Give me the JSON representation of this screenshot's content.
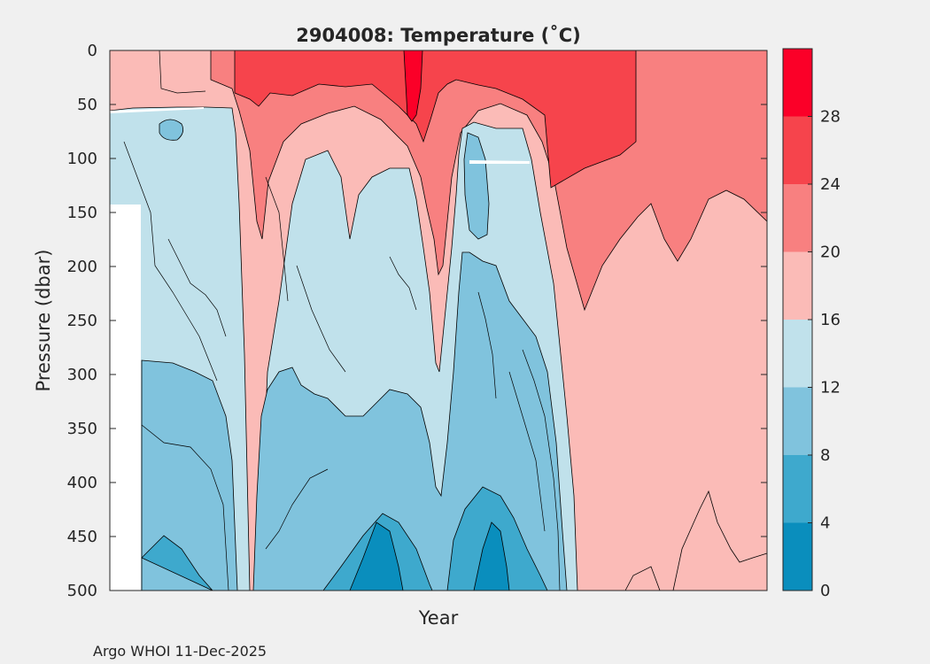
{
  "chart_data": {
    "type": "heatmap",
    "subtype": "filled-contour",
    "title": "2904008:  Temperature (˚C)",
    "xlabel": "Year",
    "ylabel": "Pressure (dbar)",
    "ylim": [
      0,
      500
    ],
    "y_reversed": true,
    "yticks": [
      "0",
      "50",
      "100",
      "150",
      "200",
      "250",
      "300",
      "350",
      "400",
      "450",
      "500"
    ],
    "xticks": [],
    "colorbar": {
      "range": [
        0,
        32
      ],
      "tick_values": [
        0,
        4,
        8,
        12,
        16,
        20,
        24,
        28
      ],
      "tick_labels": [
        "0",
        "4",
        "8",
        "12",
        "16",
        "20",
        "24",
        "28"
      ],
      "levels": [
        {
          "from": 0,
          "to": 4,
          "color": "#0a8ebd"
        },
        {
          "from": 4,
          "to": 8,
          "color": "#3ea9cd"
        },
        {
          "from": 8,
          "to": 12,
          "color": "#80c3dd"
        },
        {
          "from": 12,
          "to": 16,
          "color": "#c0e1eb"
        },
        {
          "from": 16,
          "to": 20,
          "color": "#fbbbb7"
        },
        {
          "from": 20,
          "to": 24,
          "color": "#f88080"
        },
        {
          "from": 24,
          "to": 28,
          "color": "#f6444c"
        },
        {
          "from": 28,
          "to": 32,
          "color": "#fb0028"
        }
      ]
    },
    "profiles_note": "Temperature vs pressure; values decrease with depth. Surface 16-28˚C, deep water 4-12˚C in early period, 16-20˚C in late period."
  },
  "footer": {
    "credit": "Argo WHOI 11-Dec-2025"
  },
  "colors": {
    "background": "#f0f0f0",
    "axes_bg": "#ffffff",
    "text": "#262626"
  }
}
